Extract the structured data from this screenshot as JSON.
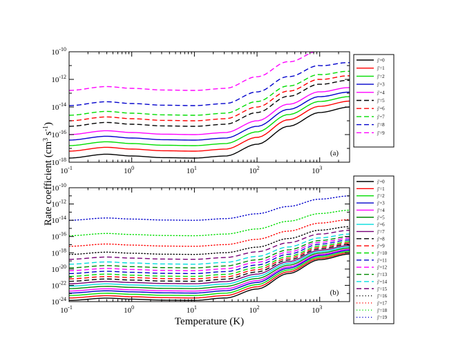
{
  "figure": {
    "ylabel": "Rate coefficient (cm",
    "ylabel_sup": "3",
    "ylabel_mid": " s",
    "ylabel_sup2": "-1",
    "ylabel_end": ")",
    "xlabel": "Temperature (K)"
  },
  "chart_data": [
    {
      "type": "line",
      "panel_label": "(a)",
      "xscale": "log",
      "yscale": "log",
      "xlim": [
        0.1,
        3000
      ],
      "ylim_exponent": [
        -18,
        -10
      ],
      "x_ticks": [
        {
          "base": "10",
          "exp": "-1"
        },
        {
          "base": "10",
          "exp": "0"
        },
        {
          "base": "10",
          "exp": "1"
        },
        {
          "base": "10",
          "exp": "2"
        },
        {
          "base": "10",
          "exp": "3"
        }
      ],
      "y_ticks": [
        {
          "base": "10",
          "exp": "-18"
        },
        {
          "base": "10",
          "exp": "-16"
        },
        {
          "base": "10",
          "exp": "-14"
        },
        {
          "base": "10",
          "exp": "-12"
        },
        {
          "base": "10",
          "exp": "-10"
        }
      ],
      "curve_shape": {
        "description": "log10(k) vs log10(T): shallow bump near 0.4 K, slight dip near 10 K, steep rise from ~50 K to ~1000 K",
        "log10T": [
          -1,
          -0.4,
          0,
          0.5,
          1,
          1.5,
          2,
          2.5,
          3,
          3.48
        ],
        "delta_log10k": [
          0,
          0.28,
          0.15,
          0.03,
          0,
          0.15,
          1.0,
          2.3,
          3.3,
          3.7
        ]
      },
      "series": [
        {
          "name": "j'=0",
          "style": "solid",
          "color": "#000000",
          "log10k_at_0p1K": -17.7
        },
        {
          "name": "j'=1",
          "style": "solid",
          "color": "#ff0000",
          "log10k_at_0p1K": -17.2
        },
        {
          "name": "j'=2",
          "style": "solid",
          "color": "#00dd00",
          "log10k_at_0p1K": -16.8
        },
        {
          "name": "j'=3",
          "style": "solid",
          "color": "#0000cc",
          "log10k_at_0p1K": -16.4
        },
        {
          "name": "j'=4",
          "style": "solid",
          "color": "#ff00ff",
          "log10k_at_0p1K": -16.0
        },
        {
          "name": "j'=5",
          "style": "dashed",
          "color": "#000000",
          "log10k_at_0p1K": -15.4
        },
        {
          "name": "j'=6",
          "style": "dashed",
          "color": "#ff0000",
          "log10k_at_0p1K": -15.0
        },
        {
          "name": "j'=7",
          "style": "dashed",
          "color": "#00dd00",
          "log10k_at_0p1K": -14.6
        },
        {
          "name": "j'=8",
          "style": "dashed",
          "color": "#0000cc",
          "log10k_at_0p1K": -13.9
        },
        {
          "name": "j'=9",
          "style": "dashed",
          "color": "#ff00ff",
          "log10k_at_0p1K": -12.8
        }
      ]
    },
    {
      "type": "line",
      "panel_label": "(b)",
      "xscale": "log",
      "yscale": "log",
      "xlim": [
        0.1,
        3000
      ],
      "ylim_exponent": [
        -24,
        -10
      ],
      "x_ticks": [
        {
          "base": "10",
          "exp": "-1"
        },
        {
          "base": "10",
          "exp": "0"
        },
        {
          "base": "10",
          "exp": "1"
        },
        {
          "base": "10",
          "exp": "2"
        },
        {
          "base": "10",
          "exp": "3"
        }
      ],
      "y_ticks": [
        {
          "base": "10",
          "exp": "-24"
        },
        {
          "base": "10",
          "exp": "-22"
        },
        {
          "base": "10",
          "exp": "-20"
        },
        {
          "base": "10",
          "exp": "-18"
        },
        {
          "base": "10",
          "exp": "-16"
        },
        {
          "base": "10",
          "exp": "-14"
        },
        {
          "base": "10",
          "exp": "-12"
        },
        {
          "base": "10",
          "exp": "-10"
        }
      ],
      "curve_shape": {
        "description": "same family shape; high-T end compresses toward the top",
        "log10T": [
          -1,
          -0.4,
          0,
          0.5,
          1,
          1.5,
          2,
          2.5,
          3,
          3.48
        ],
        "delta_log10k_low_j": [
          0,
          0.28,
          0.15,
          0.03,
          0,
          0.3,
          1.4,
          3.3,
          5.0,
          5.7
        ],
        "delta_log10k_high_j": [
          0,
          0.28,
          0.15,
          0.03,
          0,
          0.2,
          0.8,
          1.7,
          2.6,
          3.0
        ]
      },
      "series": [
        {
          "name": "j'=0",
          "style": "solid",
          "color": "#000000",
          "log10k_at_0p1K": -23.85
        },
        {
          "name": "j'=1",
          "style": "solid",
          "color": "#ff0000",
          "log10k_at_0p1K": -23.55
        },
        {
          "name": "j'=2",
          "style": "solid",
          "color": "#00dd00",
          "log10k_at_0p1K": -23.25
        },
        {
          "name": "j'=3",
          "style": "solid",
          "color": "#0000cc",
          "log10k_at_0p1K": -22.95
        },
        {
          "name": "j'=4",
          "style": "solid",
          "color": "#ff00ff",
          "log10k_at_0p1K": -22.7
        },
        {
          "name": "j'=5",
          "style": "solid",
          "color": "#008800",
          "log10k_at_0p1K": -22.4
        },
        {
          "name": "j'=6",
          "style": "solid",
          "color": "#00dddd",
          "log10k_at_0p1K": -22.1
        },
        {
          "name": "j'=7",
          "style": "solid",
          "color": "#770077",
          "log10k_at_0p1K": -21.8
        },
        {
          "name": "j'=8",
          "style": "dashed",
          "color": "#000000",
          "log10k_at_0p1K": -21.5
        },
        {
          "name": "j'=9",
          "style": "dashed",
          "color": "#ff0000",
          "log10k_at_0p1K": -21.2
        },
        {
          "name": "j'=10",
          "style": "dashed",
          "color": "#00dd00",
          "log10k_at_0p1K": -20.9
        },
        {
          "name": "j'=11",
          "style": "dashed",
          "color": "#0000cc",
          "log10k_at_0p1K": -20.55
        },
        {
          "name": "j'=12",
          "style": "dashed",
          "color": "#ff00ff",
          "log10k_at_0p1K": -20.2
        },
        {
          "name": "j'=13",
          "style": "dashed",
          "color": "#008800",
          "log10k_at_0p1K": -19.85
        },
        {
          "name": "j'=14",
          "style": "dashed",
          "color": "#00dddd",
          "log10k_at_0p1K": -19.4
        },
        {
          "name": "j'=15",
          "style": "dashed",
          "color": "#770077",
          "log10k_at_0p1K": -18.8
        },
        {
          "name": "j'=16",
          "style": "dotted",
          "color": "#000000",
          "log10k_at_0p1K": -18.2
        },
        {
          "name": "j'=17",
          "style": "dotted",
          "color": "#ff0000",
          "log10k_at_0p1K": -17.2
        },
        {
          "name": "j'=18",
          "style": "dotted",
          "color": "#00dd00",
          "log10k_at_0p1K": -15.9
        },
        {
          "name": "j'=19",
          "style": "dotted",
          "color": "#0000cc",
          "log10k_at_0p1K": -14.0
        }
      ]
    }
  ]
}
